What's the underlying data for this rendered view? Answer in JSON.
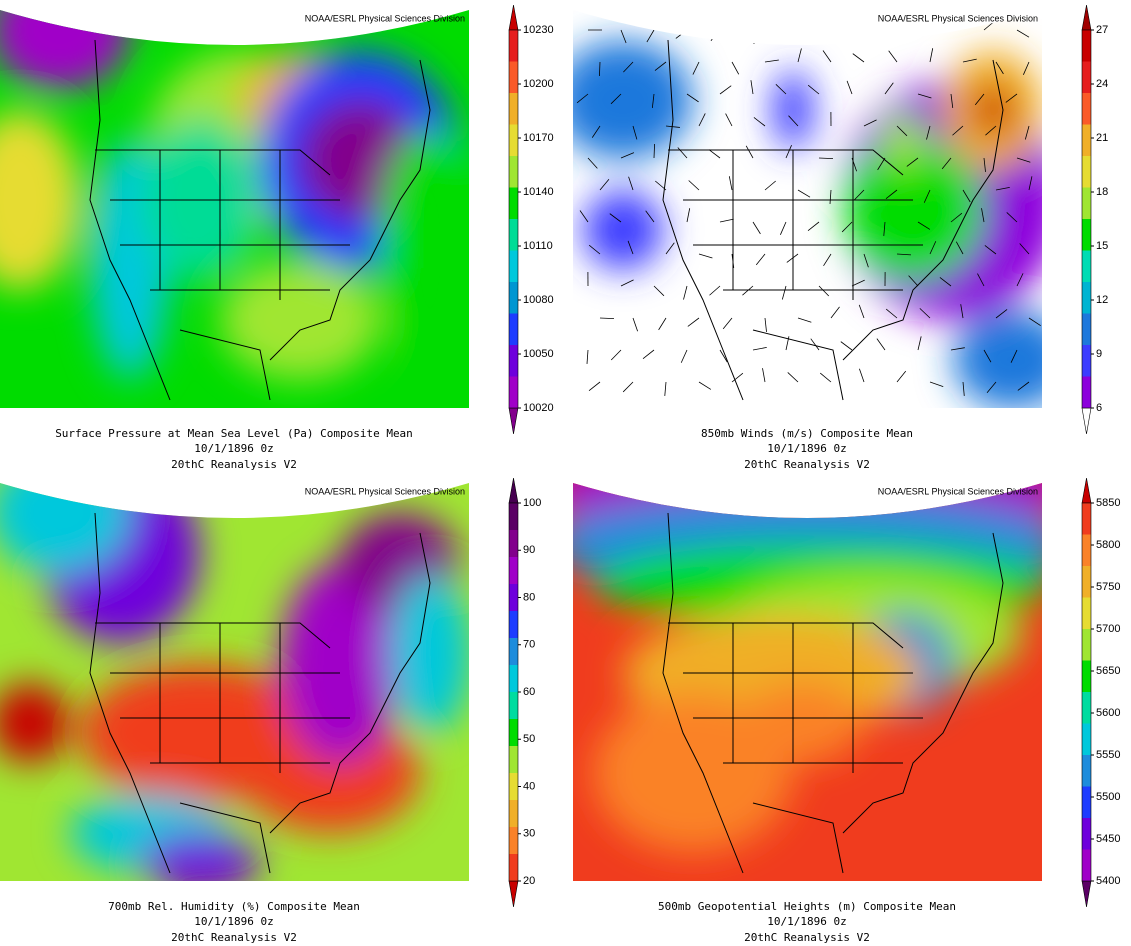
{
  "panels": [
    {
      "credit": "NOAA/ESRL Physical Sciences Division",
      "title": "Surface Pressure at Mean Sea Level (Pa)   Composite Mean",
      "date": "10/1/1896 0z",
      "source": "20thC Reanalysis V2",
      "ticks": [
        10020,
        10050,
        10080,
        10110,
        10140,
        10170,
        10200,
        10230
      ],
      "colors": [
        "#82008c",
        "#a000c8",
        "#6e00dc",
        "#1e3cff",
        "#0096d2",
        "#00c8dc",
        "#00dc96",
        "#00dc00",
        "#a0e632",
        "#e6dc32",
        "#f0af28",
        "#fa5a28",
        "#e61e1e",
        "#c80000"
      ]
    },
    {
      "credit": "NOAA/ESRL Physical Sciences Division",
      "title": "850mb Winds (m/s)   Composite Mean",
      "date": "10/1/1896 0z",
      "source": "20thC Reanalysis V2",
      "ticks": [
        6,
        9,
        12,
        15,
        18,
        21,
        24,
        27
      ],
      "colors": [
        "#ffffff",
        "#8c00dc",
        "#3c3cff",
        "#1e78dc",
        "#00b4d2",
        "#00dcb4",
        "#00dc00",
        "#a0e632",
        "#e6dc32",
        "#f0af28",
        "#fa5a28",
        "#e61e1e",
        "#c80000",
        "#a00000"
      ]
    },
    {
      "credit": "NOAA/ESRL Physical Sciences Division",
      "title": "700mb Rel. Humidity (%)   Composite Mean",
      "date": "10/1/1896 0z",
      "source": "20thC Reanalysis V2",
      "ticks": [
        20,
        30,
        40,
        50,
        60,
        70,
        80,
        90,
        100
      ],
      "colors": [
        "#c80000",
        "#f03c1e",
        "#fa8228",
        "#f0af28",
        "#e6dc32",
        "#a0e632",
        "#00dc00",
        "#00dca0",
        "#00c8dc",
        "#1e8cdc",
        "#1e3cff",
        "#6e00dc",
        "#a000c8",
        "#82008c",
        "#5a0064",
        "#460050"
      ]
    },
    {
      "credit": "NOAA/ESRL Physical Sciences Division",
      "title": "500mb Geopotential Heights (m)   Composite Mean",
      "date": "10/1/1896 0z",
      "source": "20thC Reanalysis V2",
      "ticks": [
        5400,
        5450,
        5500,
        5550,
        5600,
        5650,
        5700,
        5750,
        5800,
        5850
      ],
      "colors": [
        "#5a0064",
        "#a000c8",
        "#6e00dc",
        "#1e3cff",
        "#1e8cdc",
        "#00c8dc",
        "#00dca0",
        "#00dc00",
        "#a0e632",
        "#e6dc32",
        "#f0af28",
        "#fa8228",
        "#f03c1e",
        "#c80000"
      ]
    }
  ]
}
